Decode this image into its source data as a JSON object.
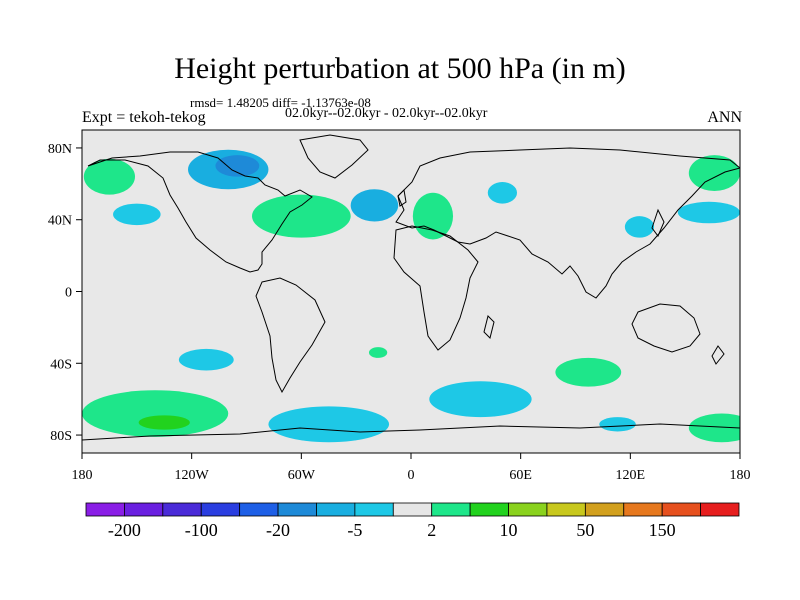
{
  "title": "Height perturbation at 500 hPa (in m)",
  "stats_line": "rmsd= 1.48205 diff= -1.13763e-08",
  "experiment_label": "Expt = tekoh-tekog",
  "period_label": "02.0kyr--02.0kyr - 02.0kyr--02.0kyr",
  "season_label": "ANN",
  "map": {
    "projection": "cylindrical-equidistant",
    "lon_range": [
      -180,
      180
    ],
    "lat_range": [
      -90,
      90
    ],
    "lat_ticks": [
      {
        "value": 80,
        "label": "80N"
      },
      {
        "value": 40,
        "label": "40N"
      },
      {
        "value": 0,
        "label": "0"
      },
      {
        "value": -40,
        "label": "40S"
      },
      {
        "value": -80,
        "label": "80S"
      }
    ],
    "lon_ticks": [
      {
        "value": -180,
        "label": "180"
      },
      {
        "value": -120,
        "label": "120W"
      },
      {
        "value": -60,
        "label": "60W"
      },
      {
        "value": 0,
        "label": "0"
      },
      {
        "value": 60,
        "label": "60E"
      },
      {
        "value": 120,
        "label": "120E"
      },
      {
        "value": 180,
        "label": "180"
      }
    ],
    "background_color": "#e8e8e8",
    "coastline_color": "#000000"
  },
  "colorbar": {
    "colors": [
      "#8a1ee6",
      "#6a1fe0",
      "#4a2bd8",
      "#2a3ee0",
      "#1e5fe6",
      "#1e8ad8",
      "#19aee0",
      "#1ec8e6",
      "#e6e6e6",
      "#1ee68a",
      "#22d21e",
      "#8ad21e",
      "#c8c81e",
      "#d2a01e",
      "#e6781e",
      "#e6501e",
      "#e61e1e"
    ],
    "labels": [
      "-200",
      "-100",
      "-20",
      "-5",
      "2",
      "10",
      "50",
      "150"
    ]
  },
  "anomaly_regions": [
    {
      "name": "north-canada-low",
      "lon": -100,
      "lat": 68,
      "rlon": 22,
      "rlat": 11,
      "color": "#19aee0"
    },
    {
      "name": "north-canada-core",
      "lon": -95,
      "lat": 70,
      "rlon": 12,
      "rlat": 6,
      "color": "#1e8ad8"
    },
    {
      "name": "alaska-high",
      "lon": -165,
      "lat": 64,
      "rlon": 14,
      "rlat": 10,
      "color": "#1ee68a"
    },
    {
      "name": "north-pacific-low",
      "lon": -150,
      "lat": 43,
      "rlon": 13,
      "rlat": 6,
      "color": "#1ec8e6"
    },
    {
      "name": "north-atlantic-high",
      "lon": -60,
      "lat": 42,
      "rlon": 27,
      "rlat": 12,
      "color": "#1ee68a"
    },
    {
      "name": "mid-atlantic-low",
      "lon": -20,
      "lat": 48,
      "rlon": 13,
      "rlat": 9,
      "color": "#19aee0"
    },
    {
      "name": "europe-high",
      "lon": 12,
      "lat": 42,
      "rlon": 11,
      "rlat": 13,
      "color": "#1ee68a"
    },
    {
      "name": "russia-low",
      "lon": 50,
      "lat": 55,
      "rlon": 8,
      "rlat": 6,
      "color": "#1ec8e6"
    },
    {
      "name": "east-asia-low",
      "lon": 125,
      "lat": 36,
      "rlon": 8,
      "rlat": 6,
      "color": "#1ec8e6"
    },
    {
      "name": "nw-pacific-low",
      "lon": 163,
      "lat": 44,
      "rlon": 17,
      "rlat": 6,
      "color": "#1ec8e6"
    },
    {
      "name": "bering-high",
      "lon": 166,
      "lat": 66,
      "rlon": 14,
      "rlat": 10,
      "color": "#1ee68a"
    },
    {
      "name": "south-pacific-low",
      "lon": -112,
      "lat": -38,
      "rlon": 15,
      "rlat": 6,
      "color": "#1ec8e6"
    },
    {
      "name": "south-atlantic-high",
      "lon": -18,
      "lat": -34,
      "rlon": 5,
      "rlat": 3,
      "color": "#1ee68a"
    },
    {
      "name": "indian-ocean-high",
      "lon": 97,
      "lat": -45,
      "rlon": 18,
      "rlat": 8,
      "color": "#1ee68a"
    },
    {
      "name": "southern-ocean-high",
      "lon": -140,
      "lat": -68,
      "rlon": 40,
      "rlat": 13,
      "color": "#1ee68a"
    },
    {
      "name": "southern-ocean-core",
      "lon": -135,
      "lat": -73,
      "rlon": 14,
      "rlat": 4,
      "color": "#22d21e"
    },
    {
      "name": "antarctic-atlantic-low",
      "lon": -45,
      "lat": -74,
      "rlon": 33,
      "rlat": 10,
      "color": "#1ec8e6"
    },
    {
      "name": "antarctic-indian-low",
      "lon": 38,
      "lat": -60,
      "rlon": 28,
      "rlat": 10,
      "color": "#1ec8e6"
    },
    {
      "name": "ross-low",
      "lon": 113,
      "lat": -74,
      "rlon": 10,
      "rlat": 4,
      "color": "#1ec8e6"
    },
    {
      "name": "sw-pacific-high",
      "lon": 170,
      "lat": -76,
      "rlon": 18,
      "rlat": 8,
      "color": "#1ee68a"
    }
  ]
}
